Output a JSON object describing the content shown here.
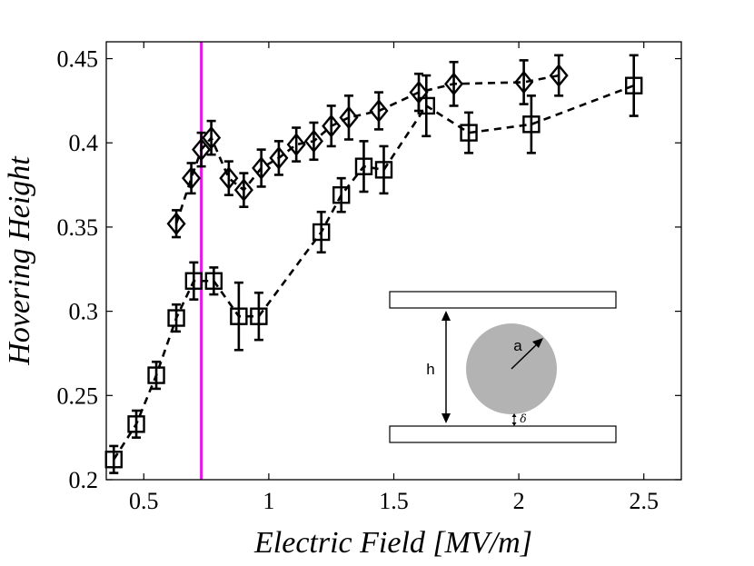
{
  "chart_data": {
    "type": "scatter",
    "title": "",
    "xlabel": "Electric Field [MV/m]",
    "ylabel": "Hovering Height",
    "xlim": [
      0.35,
      2.65
    ],
    "ylim": [
      0.2,
      0.46
    ],
    "xticks": [
      0.5,
      1,
      1.5,
      2,
      2.5
    ],
    "xtick_labels": [
      "0.5",
      "1",
      "1.5",
      "2",
      "2.5"
    ],
    "yticks": [
      0.2,
      0.25,
      0.3,
      0.35,
      0.4,
      0.45
    ],
    "ytick_labels": [
      "0.2",
      "0.25",
      "0.3",
      "0.35",
      "0.4",
      "0.45"
    ],
    "grid": false,
    "vertical_line": {
      "x": 0.73,
      "color": "#e619e6"
    },
    "series": [
      {
        "name": "squares",
        "marker": "square",
        "linestyle": "dashed",
        "color": "#000000",
        "x": [
          0.38,
          0.47,
          0.55,
          0.63,
          0.7,
          0.78,
          0.88,
          0.96,
          1.21,
          1.29,
          1.38,
          1.46,
          1.63,
          1.8,
          2.05,
          2.46
        ],
        "y": [
          0.212,
          0.233,
          0.262,
          0.296,
          0.318,
          0.318,
          0.297,
          0.297,
          0.347,
          0.369,
          0.386,
          0.384,
          0.422,
          0.406,
          0.411,
          0.434
        ],
        "err": [
          0.008,
          0.008,
          0.008,
          0.008,
          0.011,
          0.008,
          0.02,
          0.014,
          0.012,
          0.01,
          0.015,
          0.014,
          0.018,
          0.012,
          0.017,
          0.018
        ]
      },
      {
        "name": "diamonds",
        "marker": "diamond",
        "linestyle": "dashed",
        "color": "#000000",
        "x": [
          0.63,
          0.69,
          0.73,
          0.77,
          0.84,
          0.9,
          0.97,
          1.04,
          1.11,
          1.18,
          1.25,
          1.32,
          1.44,
          1.6,
          1.74,
          2.02,
          2.16
        ],
        "y": [
          0.352,
          0.379,
          0.396,
          0.403,
          0.379,
          0.372,
          0.385,
          0.391,
          0.399,
          0.401,
          0.41,
          0.415,
          0.419,
          0.43,
          0.435,
          0.436,
          0.44
        ],
        "err": [
          0.008,
          0.009,
          0.01,
          0.01,
          0.01,
          0.01,
          0.011,
          0.01,
          0.01,
          0.011,
          0.012,
          0.013,
          0.011,
          0.011,
          0.013,
          0.013,
          0.012
        ]
      }
    ]
  },
  "inset": {
    "height_label": "h",
    "radius_label": "a",
    "gap_label": "δ",
    "particle_color": "#b3b3b3"
  }
}
